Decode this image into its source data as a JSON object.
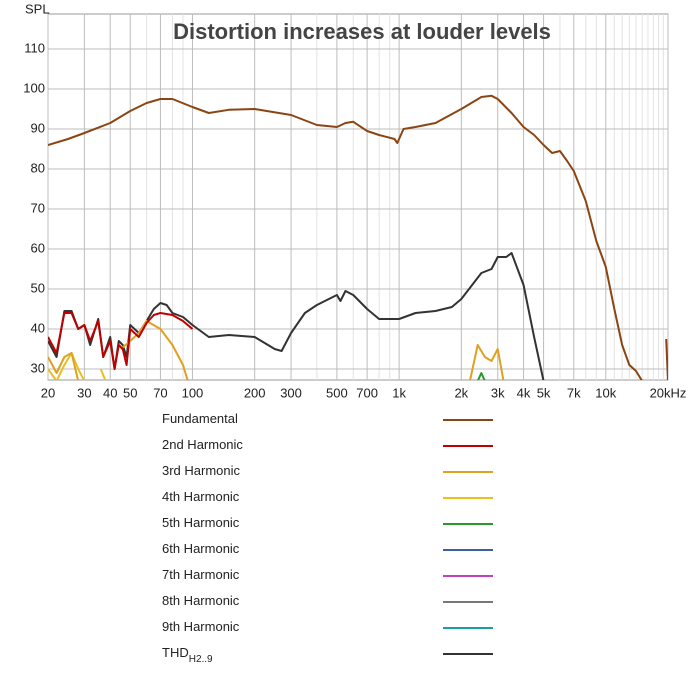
{
  "chart_data": {
    "type": "line",
    "title": "Distortion increases at louder levels",
    "y_label": "SPL",
    "log_x": true,
    "grid": true,
    "xlim": [
      20,
      20000
    ],
    "ylim": [
      27.25,
      118.75
    ],
    "xticks": [
      20,
      30,
      40,
      50,
      70,
      100,
      200,
      300,
      500,
      700,
      {
        "value": 1000,
        "label": "1k"
      },
      {
        "value": 2000,
        "label": "2k"
      },
      {
        "value": 3000,
        "label": "3k"
      },
      {
        "value": 4000,
        "label": "4k"
      },
      {
        "value": 5000,
        "label": "5k"
      },
      {
        "value": 7000,
        "label": "7k"
      },
      {
        "value": 10000,
        "label": "10k"
      },
      {
        "value": 20000,
        "label": "20kHz"
      }
    ],
    "xminor": [
      60,
      80,
      90,
      400,
      600,
      800,
      900,
      6000,
      8000,
      9000,
      11000,
      12000,
      13000,
      14000,
      15000,
      16000,
      17000,
      18000,
      19000
    ],
    "yticks": [
      30,
      40,
      50,
      60,
      70,
      80,
      90,
      100,
      110
    ],
    "series": [
      {
        "name": "Fundamental",
        "color": "#8b4513",
        "x": [
          20,
          25,
          30,
          40,
          50,
          60,
          70,
          80,
          100,
          120,
          150,
          200,
          300,
          400,
          500,
          550,
          600,
          700,
          800,
          950,
          980,
          1050,
          1200,
          1500,
          2000,
          2500,
          2800,
          3000,
          3500,
          4000,
          4500,
          5000,
          5500,
          6000,
          6500,
          7000,
          8000,
          9000,
          10000,
          11000,
          12000,
          13000,
          14000,
          15000,
          19300,
          19600,
          20000
        ],
        "values": [
          86,
          87.5,
          89,
          91.5,
          94.5,
          96.5,
          97.5,
          97.5,
          95.5,
          94,
          94.8,
          95,
          93.5,
          91,
          90.5,
          91.5,
          91.8,
          89.5,
          88.5,
          87.5,
          86.5,
          90,
          90.5,
          91.5,
          95,
          98,
          98.3,
          97.5,
          94,
          90.5,
          88.5,
          86,
          84,
          84.5,
          82,
          79.5,
          72,
          62,
          55.5,
          45,
          36,
          31,
          29.5,
          27,
          null,
          37.5,
          27
        ]
      },
      {
        "name": "2nd Harmonic",
        "color": "#c00000",
        "x": [
          20,
          22,
          24,
          26,
          28,
          30,
          32,
          35,
          37,
          40,
          42,
          44,
          46,
          48,
          50,
          55,
          60,
          65,
          70,
          80,
          90,
          100
        ],
        "values": [
          38,
          34,
          44,
          44,
          40,
          41,
          37,
          42,
          33,
          37,
          30,
          36,
          35,
          31,
          40,
          38,
          41.5,
          43.5,
          44,
          43.5,
          42,
          40
        ]
      },
      {
        "name": "3rd Harmonic",
        "color": "#e0a020",
        "x": [
          20,
          22,
          24,
          26,
          28,
          40,
          45,
          50,
          55,
          60,
          70,
          80,
          90,
          95,
          2200,
          2400,
          2600,
          2800,
          3000,
          3200
        ],
        "values": [
          33,
          29,
          33,
          34,
          27,
          null,
          35,
          37,
          39,
          42,
          40,
          36,
          31,
          27,
          27,
          36,
          33,
          32,
          35,
          27
        ]
      },
      {
        "name": "4th Harmonic",
        "color": "#e8c020",
        "x": [
          20,
          22,
          24,
          26,
          28,
          30,
          34,
          36,
          38
        ],
        "values": [
          30,
          27,
          31,
          34,
          30,
          27,
          null,
          30,
          27
        ]
      },
      {
        "name": "5th Harmonic",
        "color": "#2a9a2a",
        "x": [
          2400,
          2500,
          2600
        ],
        "values": [
          27,
          29,
          27
        ]
      },
      {
        "name": "6th Harmonic",
        "color": "#3a5fa8"
      },
      {
        "name": "7th Harmonic",
        "color": "#c040c0"
      },
      {
        "name": "8th Harmonic",
        "color": "#777777"
      },
      {
        "name": "9th Harmonic",
        "color": "#1aa0a0"
      },
      {
        "name": "THD",
        "name_subscript": "H2..9",
        "color": "#333333",
        "x": [
          20,
          22,
          24,
          26,
          28,
          30,
          32,
          35,
          37,
          40,
          42,
          44,
          46,
          48,
          50,
          55,
          60,
          65,
          70,
          75,
          80,
          90,
          100,
          120,
          150,
          200,
          250,
          270,
          300,
          350,
          400,
          500,
          520,
          550,
          600,
          700,
          800,
          1000,
          1200,
          1500,
          1800,
          2000,
          2500,
          2800,
          3000,
          3300,
          3500,
          4000,
          4500,
          5000
        ],
        "values": [
          37,
          33,
          44.5,
          44.5,
          40,
          41,
          36,
          42.5,
          33,
          38,
          30,
          37,
          36,
          33,
          41,
          39,
          42,
          45,
          46.5,
          46,
          44,
          43,
          41,
          38,
          38.5,
          38,
          35,
          34.5,
          39,
          44,
          46,
          48.5,
          47,
          49.5,
          48.5,
          45,
          42.5,
          42.5,
          44,
          44.5,
          45.5,
          47.5,
          54,
          55,
          58,
          58,
          59,
          51,
          38,
          27
        ]
      }
    ]
  }
}
